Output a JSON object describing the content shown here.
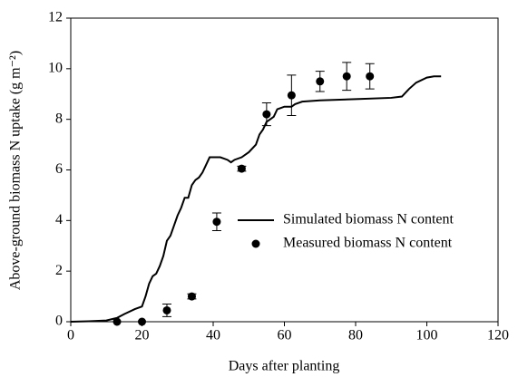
{
  "chart_data": {
    "type": "line",
    "xlabel": "Days after planting",
    "ylabel": "Above-ground biomass N uptake (g m⁻²)",
    "xlim": [
      0,
      120
    ],
    "xticks": [
      0,
      20,
      40,
      60,
      80,
      100,
      120
    ],
    "ylim": [
      0,
      12
    ],
    "yticks": [
      0,
      2,
      4,
      6,
      8,
      10,
      12
    ],
    "grid": false,
    "legend": "center-right",
    "series": [
      {
        "name": "Simulated biomass N content",
        "type": "line",
        "color": "#000000",
        "x": [
          0,
          5,
          10,
          13,
          15,
          18,
          20,
          21,
          22,
          23,
          24,
          25,
          26,
          27,
          28,
          29,
          30,
          31,
          32,
          33,
          34,
          35,
          36,
          37,
          38,
          39,
          40,
          42,
          44,
          45,
          46,
          48,
          50,
          52,
          53,
          54,
          55,
          56,
          57,
          58,
          60,
          62,
          63,
          65,
          70,
          80,
          90,
          93,
          95,
          97,
          100,
          102,
          104
        ],
        "values": [
          0,
          0.02,
          0.05,
          0.15,
          0.3,
          0.5,
          0.6,
          1.0,
          1.5,
          1.8,
          1.9,
          2.2,
          2.6,
          3.2,
          3.4,
          3.8,
          4.2,
          4.5,
          4.9,
          4.9,
          5.4,
          5.6,
          5.7,
          5.9,
          6.2,
          6.5,
          6.5,
          6.5,
          6.4,
          6.3,
          6.4,
          6.5,
          6.7,
          7.0,
          7.4,
          7.6,
          7.9,
          8.0,
          8.1,
          8.4,
          8.5,
          8.5,
          8.6,
          8.7,
          8.75,
          8.8,
          8.85,
          8.9,
          9.2,
          9.45,
          9.65,
          9.7,
          9.7
        ]
      },
      {
        "name": "Measured biomass N content",
        "type": "scatter",
        "color": "#000000",
        "x": [
          13,
          20,
          27,
          34,
          41,
          48,
          55,
          62,
          70,
          77.5,
          84
        ],
        "values": [
          0,
          0,
          0.45,
          1.0,
          3.95,
          6.05,
          8.2,
          8.95,
          9.5,
          9.7,
          9.7
        ],
        "errors": [
          0,
          0,
          0.25,
          0.1,
          0.35,
          0.1,
          0.45,
          0.8,
          0.4,
          0.55,
          0.5
        ]
      }
    ]
  }
}
